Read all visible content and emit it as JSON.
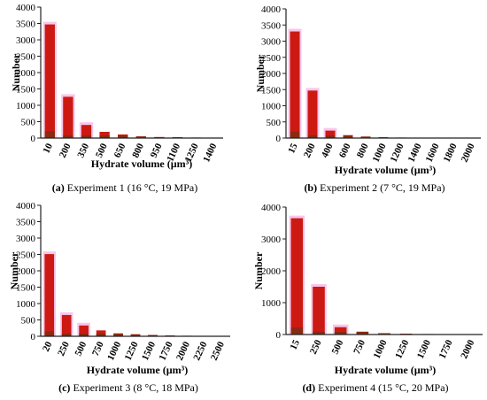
{
  "figure": {
    "panels": [
      {
        "caption_tag": "(a)",
        "caption_text": " Experiment 1 (16 °C, 19 MPa)"
      },
      {
        "caption_tag": "(b)",
        "caption_text": " Experiment 2 (7 °C, 19 MPa)"
      },
      {
        "caption_tag": "(c)",
        "caption_text": " Experiment 3 (8 °C, 18 MPa)"
      },
      {
        "caption_tag": "(d)",
        "caption_text": " Experiment 4 (15 °C, 20 MPa)"
      }
    ]
  },
  "colors": {
    "bar": "#cc1a12",
    "bar_dark": "#8a2a10",
    "axis": "#222222",
    "halo": "#f9c6ec"
  },
  "chart_data": [
    {
      "type": "bar",
      "title": "",
      "xlabel": "Hydrate volume  (µm³)",
      "ylabel": "Number",
      "ylim": [
        0,
        4000
      ],
      "yticks": [
        0,
        500,
        1000,
        1500,
        2000,
        2500,
        3000,
        3500,
        4000
      ],
      "categories": [
        "10",
        "200",
        "350",
        "500",
        "650",
        "800",
        "950",
        "1100",
        "1250",
        "1400"
      ],
      "values": [
        3470,
        1260,
        400,
        190,
        110,
        50,
        30,
        25,
        15,
        10
      ],
      "grid": false
    },
    {
      "type": "bar",
      "title": "",
      "xlabel": "Hydrate volume (µm³)",
      "ylabel": "Number",
      "ylim": [
        0,
        4000
      ],
      "yticks": [
        0,
        500,
        1000,
        1500,
        2000,
        2500,
        3000,
        3500,
        4000
      ],
      "categories": [
        "15",
        "200",
        "400",
        "600",
        "800",
        "1000",
        "1200",
        "1400",
        "1600",
        "1800",
        "2000"
      ],
      "values": [
        3300,
        1470,
        230,
        90,
        45,
        25,
        15,
        10,
        8,
        6,
        5
      ],
      "grid": false
    },
    {
      "type": "bar",
      "title": "",
      "xlabel": "Hydrate volume (µm³)",
      "ylabel": "Number",
      "ylim": [
        0,
        4000
      ],
      "yticks": [
        0,
        500,
        1000,
        1500,
        2000,
        2500,
        3000,
        3500,
        4000
      ],
      "categories": [
        "20",
        "250",
        "500",
        "750",
        "1000",
        "1250",
        "1500",
        "1750",
        "2000",
        "2250",
        "2500"
      ],
      "values": [
        2510,
        650,
        330,
        180,
        90,
        60,
        40,
        25,
        15,
        10,
        5
      ],
      "grid": false
    },
    {
      "type": "bar",
      "title": "",
      "xlabel": "Hydrate volume (µm³)",
      "ylabel": "Number",
      "ylim": [
        0,
        4000
      ],
      "yticks": [
        0,
        1000,
        2000,
        3000,
        4000
      ],
      "categories": [
        "15",
        "250",
        "500",
        "750",
        "1000",
        "1250",
        "1500",
        "1750",
        "2000"
      ],
      "values": [
        3650,
        1500,
        230,
        90,
        40,
        25,
        15,
        10,
        5
      ],
      "grid": false
    }
  ]
}
